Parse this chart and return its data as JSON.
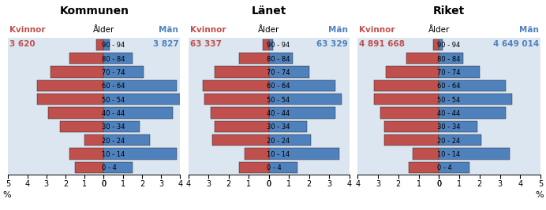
{
  "panels": [
    {
      "title": "Kommunen",
      "k_total": "3 620",
      "m_total": "3 827",
      "xlim_l": 5,
      "xlim_r": 4,
      "women": [
        1.5,
        1.8,
        1.0,
        2.3,
        2.9,
        3.5,
        3.5,
        2.8,
        1.8,
        0.4
      ],
      "men": [
        1.5,
        3.8,
        2.4,
        1.9,
        3.6,
        4.3,
        3.8,
        2.1,
        1.5,
        0.3
      ]
    },
    {
      "title": "Länet",
      "k_total": "63 337",
      "m_total": "63 329",
      "xlim_l": 4,
      "xlim_r": 4,
      "women": [
        1.5,
        1.2,
        2.8,
        2.7,
        2.9,
        3.2,
        3.3,
        2.7,
        1.5,
        0.3
      ],
      "men": [
        1.4,
        3.5,
        2.1,
        1.9,
        3.3,
        3.6,
        3.3,
        2.0,
        1.2,
        0.2
      ]
    },
    {
      "title": "Riket",
      "k_total": "4 891 668",
      "m_total": "4 649 014",
      "xlim_l": 4,
      "xlim_r": 5,
      "women": [
        1.5,
        1.3,
        2.7,
        2.7,
        2.9,
        3.2,
        3.2,
        2.6,
        1.6,
        0.3
      ],
      "men": [
        1.5,
        3.5,
        2.1,
        1.9,
        3.3,
        3.6,
        3.3,
        2.0,
        1.2,
        0.2
      ]
    }
  ],
  "age_labels": [
    "0 - 4",
    "10 - 14",
    "20 - 24",
    "30 - 34",
    "40 - 44",
    "50 - 54",
    "60 - 64",
    "70 - 74",
    "80 - 84",
    "90 - 94"
  ],
  "women_color": "#c0504d",
  "men_color": "#4f81bd",
  "bg_color": "#dce6f1",
  "edge_color": "#1a1a1a",
  "title_fontsize": 10,
  "label_fontsize": 7.5,
  "tick_fontsize": 7,
  "bar_height": 0.82
}
